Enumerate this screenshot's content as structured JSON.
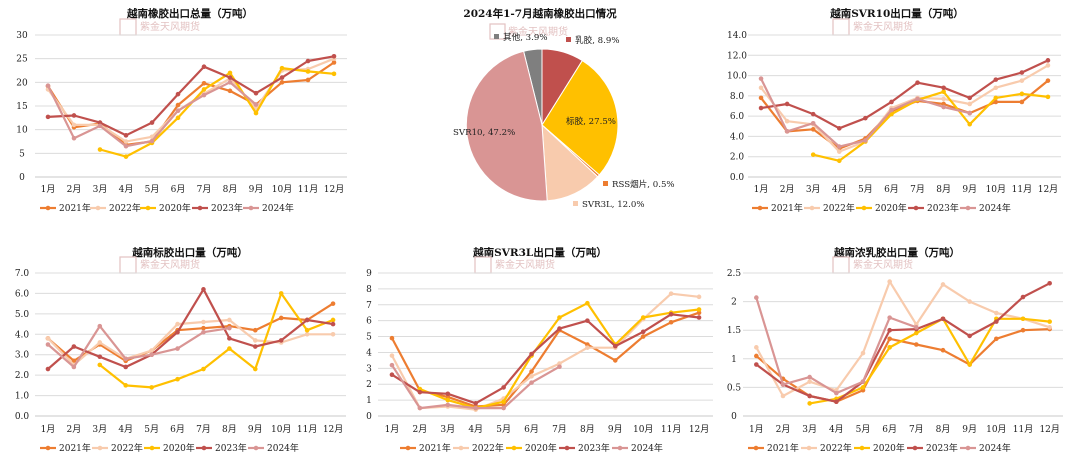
{
  "colors": {
    "2021": "#ed7d31",
    "2022": "#f8cbad",
    "2020": "#ffc000",
    "2023": "#c0504d",
    "2024": "#d99594",
    "grid": "#dcdcdc",
    "axis": "#c8c8c8"
  },
  "watermark": "紫金天风期货",
  "chart_data": [
    {
      "type": "line",
      "title": "越南橡胶出口总量（万吨）",
      "categories": [
        "1月",
        "2月",
        "3月",
        "4月",
        "5月",
        "6月",
        "7月",
        "8月",
        "9月",
        "10月",
        "11月",
        "12月"
      ],
      "ylim": [
        0,
        30
      ],
      "yticks": [
        0,
        5,
        10,
        15,
        20,
        25,
        30
      ],
      "ytick_labels": [
        "0",
        "5",
        "10",
        "15",
        "20",
        "25",
        "30"
      ],
      "grid": true,
      "legend": "bottom",
      "series": [
        {
          "name": "2021年",
          "key": "2021",
          "values": [
            19.2,
            10.5,
            11.3,
            6.8,
            7.5,
            15.2,
            19.8,
            18.2,
            15.3,
            20.0,
            20.5,
            24.2
          ]
        },
        {
          "name": "2022年",
          "key": "2022",
          "values": [
            18.5,
            11.0,
            11.0,
            7.5,
            8.5,
            14.0,
            17.6,
            20.8,
            14.5,
            22.5,
            22.8,
            25.0
          ]
        },
        {
          "name": "2020年",
          "key": "2020",
          "values": [
            null,
            null,
            5.8,
            4.3,
            7.2,
            12.5,
            18.5,
            22.0,
            13.5,
            23.0,
            22.3,
            21.8
          ]
        },
        {
          "name": "2023年",
          "key": "2023",
          "values": [
            12.7,
            13.0,
            11.5,
            8.8,
            11.5,
            17.5,
            23.3,
            21.0,
            17.7,
            21.0,
            24.5,
            25.5
          ]
        },
        {
          "name": "2024年",
          "key": "2024",
          "values": [
            19.3,
            8.2,
            10.8,
            6.5,
            7.6,
            14.0,
            17.3,
            20.0,
            15.3,
            null,
            null,
            null
          ]
        }
      ]
    },
    {
      "type": "pie",
      "title": "2024年1-7月越南橡胶出口情况",
      "slices": [
        {
          "label": "其他, 3.9%",
          "value": 3.9,
          "color": "#7f7f7f"
        },
        {
          "label": "乳胶, 8.9%",
          "value": 8.9,
          "color": "#c0504d"
        },
        {
          "label": "标胶, 27.5%",
          "value": 27.5,
          "color": "#ffc000"
        },
        {
          "label": "RSS烟片, 0.5%",
          "value": 0.5,
          "color": "#ed7d31"
        },
        {
          "label": "SVR3L, 12.0%",
          "value": 12.0,
          "color": "#f8cbad"
        },
        {
          "label": "SVR10, 47.2%",
          "value": 47.2,
          "color": "#d99594"
        }
      ]
    },
    {
      "type": "line",
      "title": "越南SVR10出口量（万吨）",
      "categories": [
        "1月",
        "2月",
        "3月",
        "4月",
        "5月",
        "6月",
        "7月",
        "8月",
        "9月",
        "10月",
        "11月",
        "12月"
      ],
      "ylim": [
        0,
        14
      ],
      "yticks": [
        0,
        2,
        4,
        6,
        8,
        10,
        12,
        14
      ],
      "ytick_labels": [
        "0.0",
        "2.0",
        "4.0",
        "6.0",
        "8.0",
        "10.0",
        "12.0",
        "14.0"
      ],
      "grid": true,
      "legend": "bottom",
      "series": [
        {
          "name": "2021年",
          "key": "2021",
          "values": [
            7.8,
            4.5,
            4.7,
            2.8,
            3.8,
            6.5,
            7.5,
            7.2,
            6.3,
            7.4,
            7.4,
            9.5
          ]
        },
        {
          "name": "2022年",
          "key": "2022",
          "values": [
            8.8,
            5.5,
            5.2,
            2.5,
            3.5,
            6.8,
            7.8,
            7.7,
            7.2,
            8.8,
            9.5,
            11.0
          ]
        },
        {
          "name": "2020年",
          "key": "2020",
          "values": [
            null,
            null,
            2.2,
            1.6,
            3.5,
            6.2,
            7.6,
            8.4,
            5.2,
            7.8,
            8.2,
            7.9
          ]
        },
        {
          "name": "2023年",
          "key": "2023",
          "values": [
            6.8,
            7.2,
            6.2,
            4.8,
            5.8,
            7.4,
            9.3,
            8.8,
            7.8,
            9.6,
            10.3,
            11.5
          ]
        },
        {
          "name": "2024年",
          "key": "2024",
          "values": [
            9.7,
            4.5,
            5.3,
            3.0,
            3.6,
            6.6,
            7.7,
            6.9,
            6.3,
            null,
            null,
            null
          ]
        }
      ]
    },
    {
      "type": "line",
      "title": "越南标胶出口量（万吨）",
      "categories": [
        "1月",
        "2月",
        "3月",
        "4月",
        "5月",
        "6月",
        "7月",
        "8月",
        "9月",
        "10月",
        "11月",
        "12月"
      ],
      "ylim": [
        0,
        7
      ],
      "yticks": [
        0,
        1,
        2,
        3,
        4,
        5,
        6,
        7
      ],
      "ytick_labels": [
        "0.0",
        "1.0",
        "2.0",
        "3.0",
        "4.0",
        "5.0",
        "6.0",
        "7.0"
      ],
      "grid": true,
      "legend": "bottom",
      "series": [
        {
          "name": "2021年",
          "key": "2021",
          "values": [
            3.8,
            2.7,
            3.5,
            2.7,
            3.2,
            4.2,
            4.3,
            4.4,
            4.2,
            4.8,
            4.7,
            5.5
          ]
        },
        {
          "name": "2022年",
          "key": "2022",
          "values": [
            3.8,
            2.5,
            3.6,
            2.8,
            3.2,
            4.5,
            4.6,
            4.7,
            3.7,
            3.6,
            4.0,
            4.0
          ]
        },
        {
          "name": "2020年",
          "key": "2020",
          "values": [
            null,
            null,
            2.5,
            1.5,
            1.4,
            1.8,
            2.3,
            3.3,
            2.3,
            6.0,
            4.2,
            4.7
          ]
        },
        {
          "name": "2023年",
          "key": "2023",
          "values": [
            2.3,
            3.4,
            2.9,
            2.4,
            3.0,
            4.1,
            6.2,
            3.8,
            3.4,
            3.7,
            4.7,
            4.5
          ]
        },
        {
          "name": "2024年",
          "key": "2024",
          "values": [
            3.5,
            2.4,
            4.4,
            2.8,
            3.0,
            3.3,
            4.1,
            4.3,
            null,
            null,
            null,
            null
          ]
        }
      ]
    },
    {
      "type": "line",
      "title": "越南SVR3L出口量（万吨）",
      "categories": [
        "1月",
        "2月",
        "3月",
        "4月",
        "5月",
        "6月",
        "7月",
        "8月",
        "9月",
        "10月",
        "11月",
        "12月"
      ],
      "ylim": [
        0,
        9
      ],
      "yticks": [
        0,
        1,
        2,
        3,
        4,
        5,
        6,
        7,
        8,
        9
      ],
      "ytick_labels": [
        "0",
        "1",
        "2",
        "3",
        "4",
        "5",
        "6",
        "7",
        "8",
        "9"
      ],
      "grid": true,
      "legend": "bottom",
      "series": [
        {
          "name": "2021年",
          "key": "2021",
          "values": [
            4.9,
            1.6,
            1.2,
            0.6,
            0.7,
            2.8,
            5.4,
            4.5,
            3.5,
            5.0,
            5.9,
            6.5
          ]
        },
        {
          "name": "2022年",
          "key": "2022",
          "values": [
            3.8,
            0.5,
            0.6,
            0.4,
            1.1,
            2.5,
            3.3,
            4.3,
            4.3,
            6.1,
            7.7,
            7.5
          ]
        },
        {
          "name": "2020年",
          "key": "2020",
          "values": [
            null,
            1.7,
            1.0,
            0.5,
            0.9,
            3.8,
            6.2,
            7.1,
            4.5,
            6.2,
            6.5,
            6.7
          ]
        },
        {
          "name": "2023年",
          "key": "2023",
          "values": [
            2.6,
            1.5,
            1.4,
            0.8,
            1.8,
            3.9,
            5.5,
            6.0,
            4.4,
            5.3,
            6.4,
            6.2
          ]
        },
        {
          "name": "2024年",
          "key": "2024",
          "values": [
            3.2,
            0.5,
            0.7,
            0.5,
            0.5,
            2.1,
            3.1,
            null,
            null,
            null,
            null,
            null
          ]
        }
      ]
    },
    {
      "type": "line",
      "title": "越南浓乳胶出口量（万吨）",
      "categories": [
        "1月",
        "2月",
        "3月",
        "4月",
        "5月",
        "6月",
        "7月",
        "8月",
        "9月",
        "10月",
        "11月",
        "12月"
      ],
      "ylim": [
        0,
        2.5
      ],
      "yticks": [
        0,
        0.5,
        1.0,
        1.5,
        2.0,
        2.5
      ],
      "ytick_labels": [
        "0",
        "0.5",
        "1",
        "1.5",
        "2",
        "2.5"
      ],
      "grid": true,
      "legend": "bottom",
      "series": [
        {
          "name": "2021年",
          "key": "2021",
          "values": [
            1.05,
            0.65,
            0.35,
            0.25,
            0.45,
            1.35,
            1.25,
            1.15,
            0.9,
            1.35,
            1.5,
            1.52
          ]
        },
        {
          "name": "2022年",
          "key": "2022",
          "values": [
            1.2,
            0.35,
            0.6,
            0.45,
            1.1,
            2.35,
            1.6,
            2.3,
            2.0,
            1.8,
            1.7,
            1.55
          ]
        },
        {
          "name": "2020年",
          "key": "2020",
          "values": [
            null,
            null,
            0.22,
            0.3,
            0.5,
            1.2,
            1.45,
            1.7,
            0.9,
            1.7,
            1.7,
            1.65
          ]
        },
        {
          "name": "2023年",
          "key": "2023",
          "values": [
            0.9,
            0.55,
            0.35,
            0.25,
            0.6,
            1.5,
            1.52,
            1.7,
            1.4,
            1.65,
            2.08,
            2.32
          ]
        },
        {
          "name": "2024年",
          "key": "2024",
          "values": [
            2.07,
            0.55,
            0.68,
            0.4,
            0.6,
            1.72,
            1.55,
            null,
            null,
            null,
            null,
            null
          ]
        }
      ]
    }
  ]
}
